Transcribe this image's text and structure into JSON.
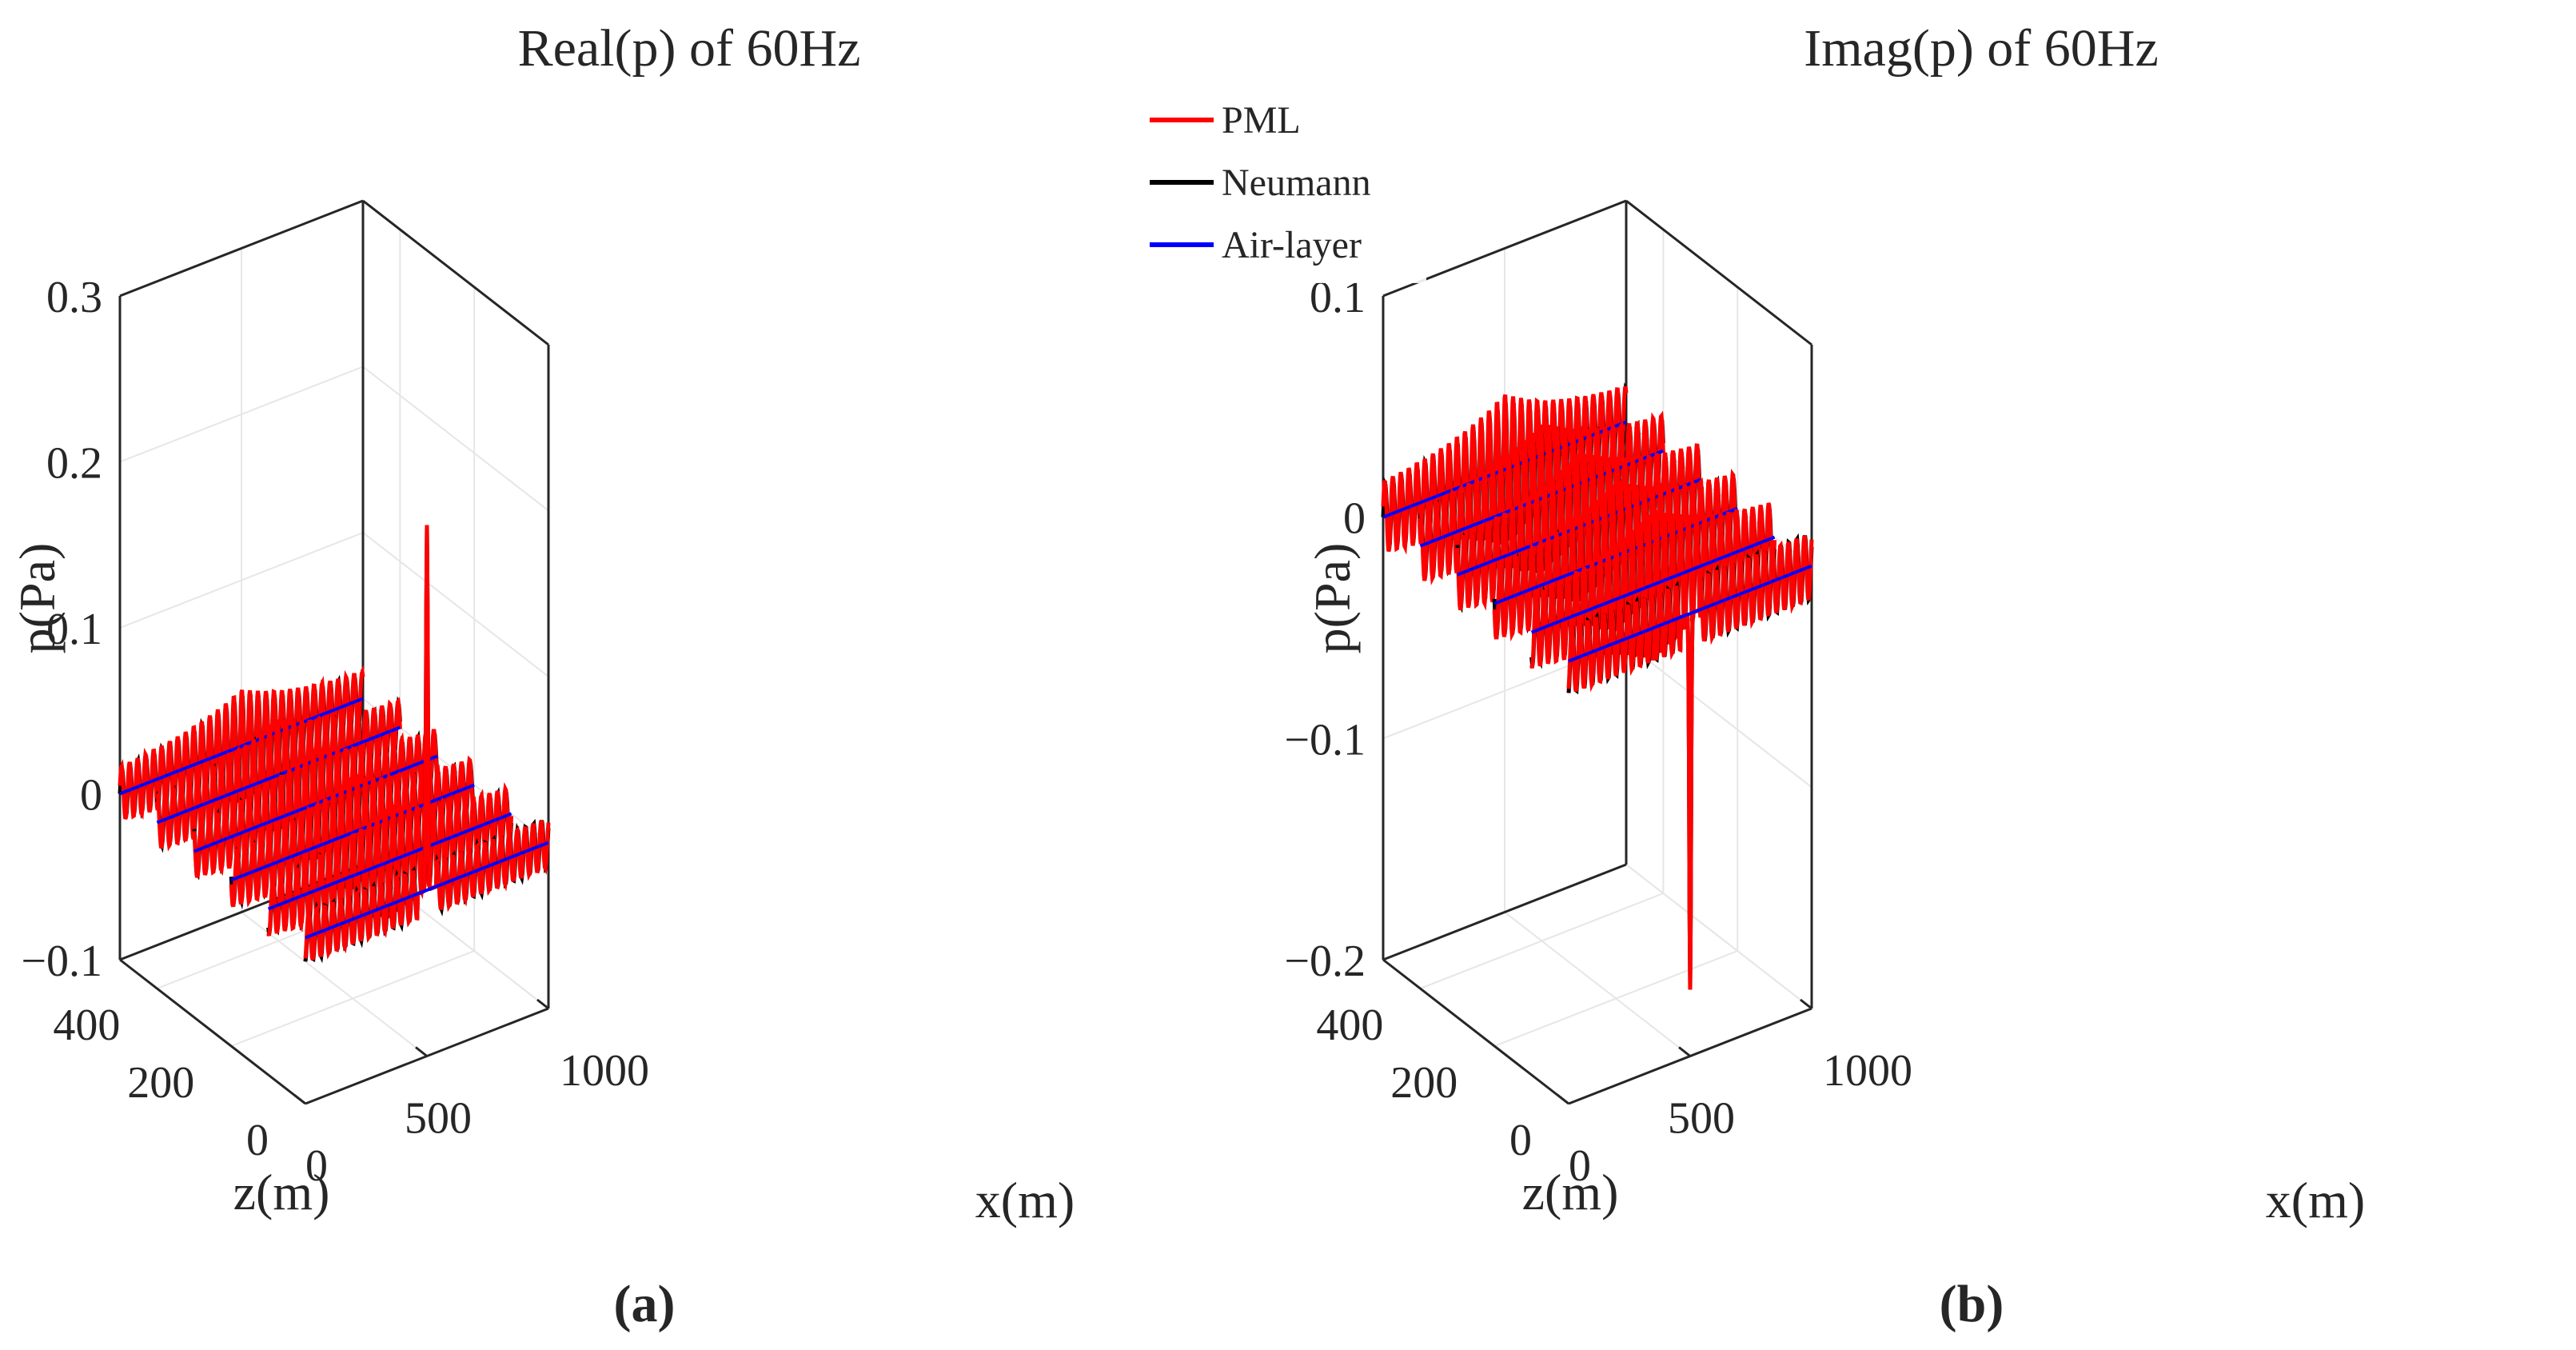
{
  "legend": {
    "entries": [
      {
        "label": "PML",
        "color": "#ff0000"
      },
      {
        "label": "Neumann",
        "color": "#000000"
      },
      {
        "label": "Air-layer",
        "color": "#0000ff"
      }
    ]
  },
  "colors": {
    "axis": "#262626",
    "grid": "#e6e6e6",
    "PML": "#ff0000",
    "Neumann": "#000000",
    "Air-layer": "#0000ff"
  },
  "chart_data": [
    {
      "type": "line",
      "panel_label": "(a)",
      "title": "Real(p) of 60Hz",
      "xlabel": "x(m)",
      "ylabel": "z(m)",
      "zlabel": "p(Pa)",
      "xlim": [
        0,
        1000
      ],
      "ylim": [
        0,
        500
      ],
      "zlim": [
        -0.1,
        0.3
      ],
      "xticks": [
        0,
        500,
        1000
      ],
      "yticks": [
        0,
        200,
        400
      ],
      "zticks": [
        -0.1,
        0,
        0.1,
        0.2,
        0.3
      ],
      "xtick_labels": [
        "0",
        "500",
        "1000"
      ],
      "ytick_labels": [
        "0",
        "200",
        "400"
      ],
      "ztick_labels": [
        "−0.1",
        "0",
        "0.1",
        "0.2",
        "0.3"
      ],
      "grid": true,
      "profile_depths_m": [
        500,
        400,
        300,
        200,
        100,
        0
      ],
      "source": {
        "x_m": 500,
        "z_m": 0,
        "peak_p": 0.22,
        "trough_p": -0.05
      },
      "oscillation_amplitude_p": 0.012,
      "series": [
        {
          "name": "PML",
          "color": "#ff0000"
        },
        {
          "name": "Neumann",
          "color": "#000000"
        },
        {
          "name": "Air-layer",
          "color": "#0000ff"
        }
      ]
    },
    {
      "type": "line",
      "panel_label": "(b)",
      "title": "Imag(p) of 60Hz",
      "xlabel": "x(m)",
      "ylabel": "z(m)",
      "zlabel": "p(Pa)",
      "xlim": [
        0,
        1000
      ],
      "ylim": [
        0,
        500
      ],
      "zlim": [
        -0.2,
        0.1
      ],
      "xticks": [
        0,
        500,
        1000
      ],
      "yticks": [
        0,
        200,
        400
      ],
      "zticks": [
        -0.2,
        -0.1,
        0,
        0.1
      ],
      "xtick_labels": [
        "0",
        "500",
        "1000"
      ],
      "ytick_labels": [
        "0",
        "200",
        "400"
      ],
      "ztick_labels": [
        "−0.2",
        "−0.1",
        "0",
        "0.1"
      ],
      "grid": true,
      "profile_depths_m": [
        500,
        400,
        300,
        200,
        100,
        0
      ],
      "source": {
        "x_m": 500,
        "z_m": 0,
        "peak_p": -0.17,
        "trough_p": -0.17
      },
      "oscillation_amplitude_p": 0.012,
      "series": [
        {
          "name": "PML",
          "color": "#ff0000"
        },
        {
          "name": "Neumann",
          "color": "#000000"
        },
        {
          "name": "Air-layer",
          "color": "#0000ff"
        }
      ]
    }
  ]
}
